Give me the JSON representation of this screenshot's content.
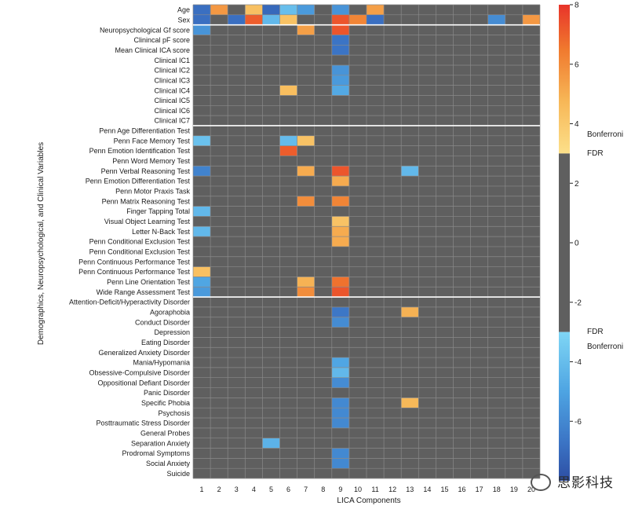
{
  "chart_data": {
    "type": "heatmap",
    "xlabel": "LICA Components",
    "ylabel": "Demographics, Neuropsychological, and Clinical Variables",
    "columns": [
      "1",
      "2",
      "3",
      "4",
      "5",
      "6",
      "7",
      "8",
      "9",
      "10",
      "11",
      "12",
      "13",
      "14",
      "15",
      "16",
      "17",
      "18",
      "19",
      "20"
    ],
    "rows": [
      "Age",
      "Sex",
      "Neuropsychological Gf score",
      "Clinincal pF score",
      "Mean Clinical ICA score",
      "Clinical IC1",
      "Clinical IC2",
      "Clinical IC3",
      "Clinical IC4",
      "Clinical IC5",
      "Clinical IC6",
      "Clinical IC7",
      "Penn Age Differentiation Test",
      "Penn Face Memory Test",
      "Penn Emotion Identification Test",
      "Penn Word Memory Test",
      "Penn Verbal Reasoning Test",
      "Penn Emotion Differentiation Test",
      "Penn Motor Praxis Task",
      "Penn Matrix Reasoning Test",
      "Finger Tapping Total",
      "Visual Object Learning Test",
      "Letter N-Back Test",
      "Penn Conditional Exclusion Test",
      "Penn Conditional Exclusion Test",
      "Penn Continuous Performance Test",
      "Penn Continuous Performance Test",
      "Penn Line Orientation Test",
      "Wide Range Assessment Test",
      "Attention-Deficit/Hyperactivity Disorder",
      "Agoraphobia",
      "Conduct Disorder",
      "Depression",
      "Eating Disorder",
      "Generalized Anxiety Disorder",
      "Mania/Hypomania",
      "Obsessive-Compulsive Disorder",
      "Oppositional Defiant Disorder",
      "Panic Disorder",
      "Specific Phobia",
      "Psychosis",
      "Posttraumatic Stress Disorder",
      "General Probes",
      "Separation Anxiety",
      "Prodromal Symptoms",
      "Social Anxiety",
      "Suicide"
    ],
    "group_separators_after_row": [
      1,
      11,
      28
    ],
    "cells": [
      [
        0,
        0,
        -6.5
      ],
      [
        0,
        1,
        5.5
      ],
      [
        0,
        3,
        4.3
      ],
      [
        0,
        4,
        -6.8
      ],
      [
        0,
        5,
        -3.8
      ],
      [
        0,
        6,
        -5.0
      ],
      [
        0,
        8,
        -5.2
      ],
      [
        0,
        10,
        5.3
      ],
      [
        1,
        0,
        -6.5
      ],
      [
        1,
        2,
        -6.5
      ],
      [
        1,
        3,
        7.0
      ],
      [
        1,
        4,
        -4.0
      ],
      [
        1,
        5,
        4.2
      ],
      [
        1,
        8,
        7.2
      ],
      [
        1,
        9,
        6.0
      ],
      [
        1,
        10,
        -6.5
      ],
      [
        1,
        17,
        -5.5
      ],
      [
        1,
        19,
        5.5
      ],
      [
        2,
        0,
        -5.2
      ],
      [
        2,
        6,
        5.3
      ],
      [
        2,
        8,
        7.2
      ],
      [
        3,
        8,
        -6.3
      ],
      [
        4,
        8,
        -6.3
      ],
      [
        6,
        8,
        -5.2
      ],
      [
        7,
        8,
        -5.0
      ],
      [
        8,
        5,
        4.4
      ],
      [
        8,
        8,
        -4.5
      ],
      [
        13,
        0,
        -3.7
      ],
      [
        13,
        5,
        -3.9
      ],
      [
        13,
        6,
        4.2
      ],
      [
        14,
        5,
        7.0
      ],
      [
        16,
        0,
        -5.8
      ],
      [
        16,
        6,
        5.0
      ],
      [
        16,
        8,
        7.2
      ],
      [
        16,
        12,
        -4.0
      ],
      [
        17,
        8,
        5.0
      ],
      [
        19,
        6,
        5.8
      ],
      [
        19,
        8,
        6.0
      ],
      [
        20,
        0,
        -4.0
      ],
      [
        21,
        8,
        4.2
      ],
      [
        22,
        0,
        -4.0
      ],
      [
        22,
        8,
        5.0
      ],
      [
        23,
        8,
        5.0
      ],
      [
        26,
        0,
        4.3
      ],
      [
        27,
        0,
        -4.6
      ],
      [
        27,
        6,
        4.8
      ],
      [
        27,
        8,
        6.5
      ],
      [
        28,
        0,
        -5.0
      ],
      [
        28,
        6,
        5.8
      ],
      [
        28,
        8,
        7.2
      ],
      [
        30,
        8,
        -6.2
      ],
      [
        30,
        12,
        4.8
      ],
      [
        31,
        8,
        -5.5
      ],
      [
        35,
        8,
        -4.6
      ],
      [
        36,
        8,
        -4.0
      ],
      [
        37,
        8,
        -5.5
      ],
      [
        39,
        8,
        -5.6
      ],
      [
        39,
        12,
        4.6
      ],
      [
        40,
        8,
        -5.6
      ],
      [
        41,
        8,
        -5.6
      ],
      [
        43,
        4,
        -4.2
      ],
      [
        44,
        8,
        -5.6
      ],
      [
        45,
        8,
        -5.6
      ]
    ],
    "colorbar": {
      "range": [
        -8,
        8
      ],
      "ticks": [
        "8",
        "6",
        "4",
        "2",
        "0",
        "-2",
        "-4",
        "-6"
      ],
      "upper_threshold_label_fdr": "FDR",
      "upper_threshold_label_bonferroni": "Bonferroni",
      "lower_threshold_label_fdr": "FDR",
      "lower_threshold_label_bonferroni": "Bonferroni",
      "fdr_threshold": 3.0,
      "bonferroni_threshold": 3.6
    }
  },
  "watermark": {
    "text": "思影科技"
  }
}
